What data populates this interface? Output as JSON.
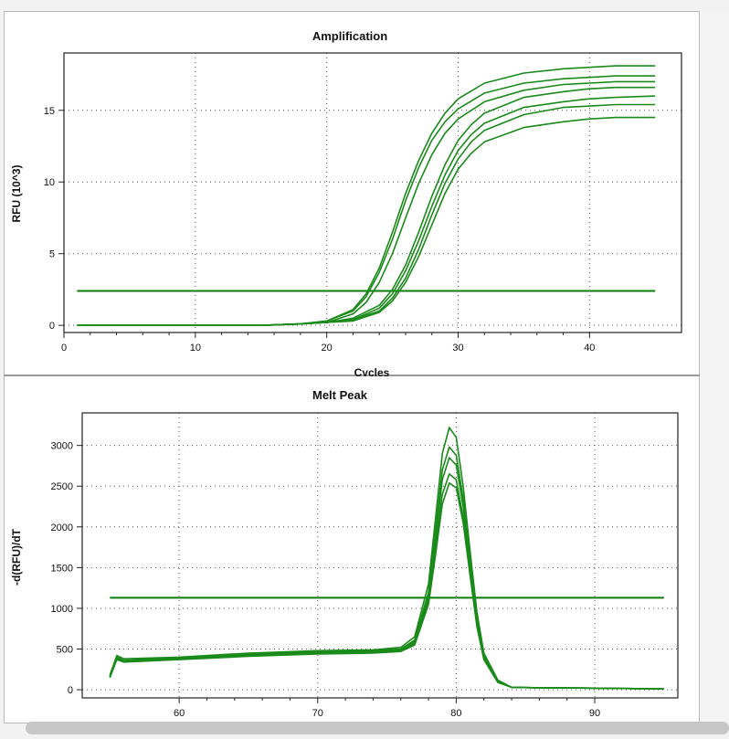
{
  "chart_data": [
    {
      "type": "line",
      "title": "Amplification",
      "xlabel": "Cycles",
      "ylabel": "RFU (10^3)",
      "xlim": [
        0,
        47
      ],
      "ylim": [
        -0.5,
        19
      ],
      "xticks": [
        0,
        10,
        20,
        30,
        40
      ],
      "yticks": [
        0,
        5,
        10,
        15
      ],
      "grid": true,
      "line_color": "#1a8a1a",
      "threshold": {
        "value": 2.4,
        "color": "#0a7a0a"
      },
      "series": [
        {
          "x": [
            1,
            5,
            10,
            15,
            18,
            20,
            22,
            23,
            24,
            25,
            26,
            27,
            28,
            29,
            30,
            32,
            35,
            38,
            40,
            42,
            45
          ],
          "values": [
            0,
            0,
            0,
            0,
            0.1,
            0.3,
            1.1,
            2.2,
            4.0,
            6.5,
            9.2,
            11.5,
            13.4,
            14.8,
            15.8,
            16.9,
            17.6,
            17.9,
            18.0,
            18.1,
            18.1
          ]
        },
        {
          "x": [
            1,
            5,
            10,
            15,
            18,
            20,
            22,
            23,
            24,
            25,
            26,
            27,
            28,
            29,
            30,
            32,
            35,
            38,
            40,
            42,
            45
          ],
          "values": [
            0,
            0,
            0,
            0,
            0.1,
            0.3,
            1.0,
            2.0,
            3.7,
            6.0,
            8.7,
            11.0,
            12.9,
            14.2,
            15.1,
            16.2,
            16.9,
            17.2,
            17.3,
            17.4,
            17.4
          ]
        },
        {
          "x": [
            1,
            5,
            10,
            15,
            18,
            20,
            22,
            23,
            24,
            25,
            26,
            27,
            28,
            29,
            30,
            32,
            35,
            38,
            40,
            42,
            45
          ],
          "values": [
            0,
            0,
            0,
            0,
            0.1,
            0.2,
            0.8,
            1.6,
            3.0,
            5.0,
            7.5,
            9.9,
            11.9,
            13.4,
            14.4,
            15.6,
            16.4,
            16.8,
            16.9,
            17.0,
            17.0
          ]
        },
        {
          "x": [
            1,
            5,
            10,
            15,
            18,
            20,
            22,
            24,
            25,
            26,
            27,
            28,
            29,
            30,
            31,
            32,
            35,
            38,
            40,
            42,
            45
          ],
          "values": [
            0,
            0,
            0,
            0,
            0.1,
            0.2,
            0.5,
            1.4,
            2.5,
            4.2,
            6.5,
            9.0,
            11.2,
            12.9,
            14.0,
            14.8,
            15.9,
            16.3,
            16.5,
            16.6,
            16.6
          ]
        },
        {
          "x": [
            1,
            5,
            10,
            15,
            18,
            20,
            22,
            24,
            25,
            26,
            27,
            28,
            29,
            30,
            31,
            32,
            35,
            38,
            40,
            42,
            45
          ],
          "values": [
            0,
            0,
            0,
            0,
            0.1,
            0.2,
            0.4,
            1.2,
            2.2,
            3.8,
            5.9,
            8.3,
            10.5,
            12.2,
            13.3,
            14.1,
            15.2,
            15.6,
            15.8,
            15.9,
            16.0
          ]
        },
        {
          "x": [
            1,
            5,
            10,
            15,
            18,
            20,
            22,
            24,
            25,
            26,
            27,
            28,
            29,
            30,
            31,
            32,
            35,
            38,
            40,
            42,
            45
          ],
          "values": [
            0,
            0,
            0,
            0,
            0.1,
            0.2,
            0.4,
            1.0,
            1.9,
            3.3,
            5.3,
            7.7,
            9.9,
            11.6,
            12.8,
            13.6,
            14.7,
            15.2,
            15.3,
            15.4,
            15.4
          ]
        },
        {
          "x": [
            1,
            5,
            10,
            15,
            18,
            20,
            22,
            24,
            25,
            26,
            27,
            28,
            29,
            30,
            31,
            32,
            35,
            38,
            40,
            42,
            45
          ],
          "values": [
            0,
            0,
            0,
            0,
            0.1,
            0.2,
            0.3,
            0.9,
            1.7,
            3.0,
            4.8,
            7.0,
            9.2,
            10.9,
            12.0,
            12.8,
            13.8,
            14.2,
            14.4,
            14.5,
            14.5
          ]
        }
      ]
    },
    {
      "type": "line",
      "title": "Melt Peak",
      "xlabel": "",
      "ylabel": "-d(RFU)/dT",
      "xlim": [
        53,
        96
      ],
      "ylim": [
        -100,
        3400
      ],
      "xticks": [
        60,
        70,
        80,
        90
      ],
      "yticks": [
        0,
        500,
        1000,
        1500,
        2000,
        2500,
        3000
      ],
      "grid": true,
      "line_color": "#1a8a1a",
      "threshold": {
        "value": 1130,
        "color": "#0a7a0a"
      },
      "series": [
        {
          "x": [
            55,
            55.5,
            56,
            58,
            60,
            65,
            70,
            74,
            76,
            77,
            78,
            78.5,
            79,
            79.5,
            80,
            80.5,
            81,
            81.5,
            82,
            83,
            84,
            86,
            90,
            95
          ],
          "values": [
            180,
            420,
            380,
            390,
            400,
            450,
            480,
            490,
            520,
            650,
            1300,
            2100,
            2900,
            3220,
            3100,
            2500,
            1700,
            950,
            450,
            120,
            30,
            25,
            20,
            10
          ]
        },
        {
          "x": [
            55,
            55.5,
            56,
            58,
            60,
            65,
            70,
            74,
            76,
            77,
            78,
            78.5,
            79,
            79.5,
            80,
            80.5,
            81,
            81.5,
            82,
            83,
            84,
            86,
            90,
            95
          ],
          "values": [
            170,
            400,
            360,
            380,
            395,
            440,
            470,
            480,
            500,
            610,
            1200,
            1950,
            2700,
            2980,
            2880,
            2350,
            1600,
            880,
            420,
            110,
            30,
            25,
            20,
            10
          ]
        },
        {
          "x": [
            55,
            55.5,
            56,
            58,
            60,
            65,
            70,
            74,
            76,
            77,
            78,
            78.5,
            79,
            79.5,
            80,
            80.5,
            81,
            81.5,
            82,
            83,
            84,
            86,
            90,
            95
          ],
          "values": [
            160,
            390,
            350,
            370,
            385,
            430,
            460,
            470,
            490,
            590,
            1150,
            1850,
            2580,
            2850,
            2760,
            2250,
            1530,
            840,
            400,
            100,
            30,
            25,
            20,
            10
          ]
        },
        {
          "x": [
            55,
            55.5,
            56,
            58,
            60,
            65,
            70,
            74,
            76,
            77,
            78,
            78.5,
            79,
            79.5,
            80,
            80.5,
            81,
            81.5,
            82,
            83,
            84,
            86,
            90,
            95
          ],
          "values": [
            150,
            380,
            345,
            360,
            380,
            420,
            450,
            460,
            480,
            570,
            1100,
            1750,
            2400,
            2650,
            2580,
            2120,
            1450,
            800,
            380,
            95,
            30,
            25,
            20,
            10
          ]
        },
        {
          "x": [
            55,
            55.5,
            56,
            58,
            60,
            65,
            70,
            74,
            76,
            77,
            78,
            78.5,
            79,
            79.5,
            80,
            80.5,
            81,
            81.5,
            82,
            83,
            84,
            86,
            90,
            95
          ],
          "values": [
            150,
            370,
            340,
            355,
            370,
            410,
            440,
            450,
            470,
            550,
            1050,
            1650,
            2280,
            2540,
            2480,
            2050,
            1400,
            770,
            370,
            90,
            30,
            25,
            20,
            10
          ]
        }
      ]
    }
  ]
}
